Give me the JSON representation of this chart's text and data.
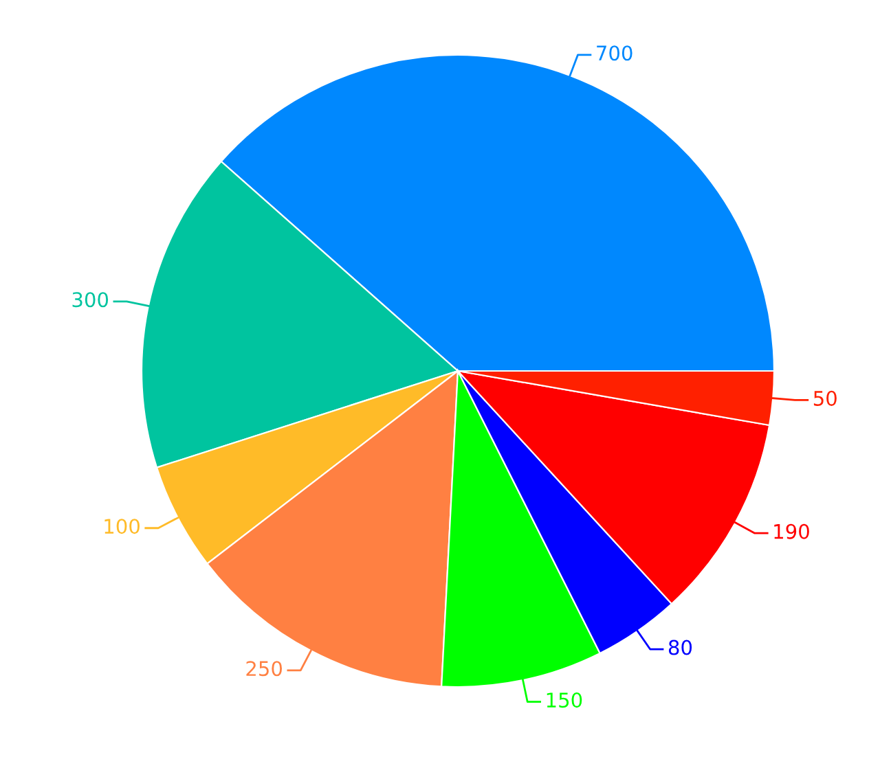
{
  "chart_data": {
    "type": "pie",
    "categories": [
      null,
      null,
      null,
      null,
      null,
      null,
      null,
      null
    ],
    "values": [
      700,
      300,
      100,
      250,
      150,
      80,
      190,
      50
    ],
    "colors": [
      "#0088fe",
      "#00c49f",
      "#ffbb28",
      "#ff8042",
      "#00ff00",
      "#0000ff",
      "#ff0000",
      "#ff2000"
    ],
    "data_labels": true
  }
}
